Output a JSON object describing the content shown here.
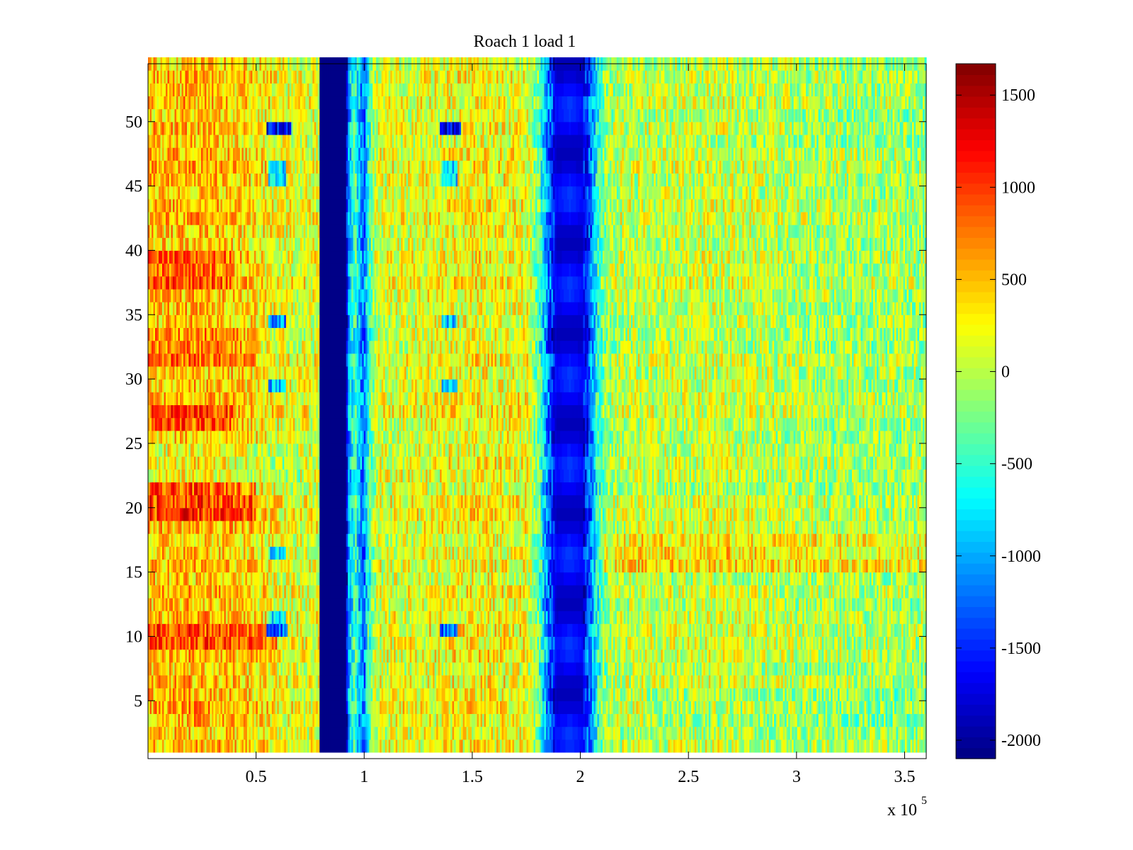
{
  "chart_data": {
    "type": "heatmap",
    "title": "Roach 1 load 1",
    "xlabel": "",
    "ylabel": "",
    "x_multiplier": "x 10",
    "x_multiplier_exponent": "5",
    "xlim": [
      0,
      360000
    ],
    "ylim": [
      0.5,
      54.5
    ],
    "clim": [
      -2100,
      1670
    ],
    "colormap": "jet",
    "colormap_levels": 64,
    "xticks": [
      50000,
      100000,
      150000,
      200000,
      250000,
      300000,
      350000
    ],
    "xtick_labels": [
      "0.5",
      "1",
      "1.5",
      "2",
      "2.5",
      "3",
      "3.5"
    ],
    "yticks": [
      5,
      10,
      15,
      20,
      25,
      30,
      35,
      40,
      45,
      50
    ],
    "ytick_labels": [
      "5",
      "10",
      "15",
      "20",
      "25",
      "30",
      "35",
      "40",
      "45",
      "50"
    ],
    "colorbar_ticks": [
      -2000,
      -1500,
      -1000,
      -500,
      0,
      500,
      1000,
      1500
    ],
    "colorbar_tick_labels": [
      "-2000",
      "-1500",
      "-1000",
      "-500",
      "0",
      "500",
      "1000",
      "1500"
    ],
    "rows": 54,
    "x_profile": [
      {
        "x": 0,
        "value": 450
      },
      {
        "x": 20000,
        "value": 500
      },
      {
        "x": 40000,
        "value": 430
      },
      {
        "x": 55000,
        "value": 300
      },
      {
        "x": 65000,
        "value": 150
      },
      {
        "x": 75000,
        "value": 150
      },
      {
        "x": 79000,
        "value": 150
      },
      {
        "x": 79500,
        "value": -2100
      },
      {
        "x": 91500,
        "value": -2100
      },
      {
        "x": 93000,
        "value": -900
      },
      {
        "x": 96000,
        "value": -400
      },
      {
        "x": 98000,
        "value": -1000
      },
      {
        "x": 100000,
        "value": -1200
      },
      {
        "x": 102000,
        "value": -500
      },
      {
        "x": 106000,
        "value": 100
      },
      {
        "x": 150000,
        "value": 250
      },
      {
        "x": 175000,
        "value": 200
      },
      {
        "x": 181000,
        "value": -400
      },
      {
        "x": 185000,
        "value": -1300
      },
      {
        "x": 189000,
        "value": -1900
      },
      {
        "x": 201000,
        "value": -1900
      },
      {
        "x": 205000,
        "value": -1300
      },
      {
        "x": 208000,
        "value": -600
      },
      {
        "x": 212000,
        "value": -100
      },
      {
        "x": 220000,
        "value": 0
      },
      {
        "x": 270000,
        "value": 60
      },
      {
        "x": 310000,
        "value": -60
      },
      {
        "x": 360000,
        "value": -100
      }
    ],
    "noise_amplitude": 450,
    "row_effects": [
      {
        "rows": [
          9,
          10
        ],
        "x_range": [
          0,
          60000
        ],
        "delta": 400
      },
      {
        "rows": [
          19,
          20,
          21
        ],
        "x_range": [
          0,
          50000
        ],
        "delta": 450
      },
      {
        "rows": [
          26,
          27
        ],
        "x_range": [
          0,
          40000
        ],
        "delta": 400
      },
      {
        "rows": [
          31,
          32,
          33
        ],
        "x_range": [
          0,
          50000
        ],
        "delta": 250
      },
      {
        "rows": [
          37,
          38,
          39
        ],
        "x_range": [
          0,
          40000
        ],
        "delta": 300
      },
      {
        "rows": [
          15,
          16,
          17
        ],
        "x_range": [
          210000,
          360000
        ],
        "delta": 350
      },
      {
        "rows": [
          3,
          4,
          5
        ],
        "x_range": [
          230000,
          360000
        ],
        "delta": -150
      },
      {
        "rows": [
          22,
          23,
          24
        ],
        "x_range": [
          0,
          70000
        ],
        "delta": -250
      }
    ],
    "spots": [
      {
        "rows": [
          49
        ],
        "x_range": [
          55000,
          66000
        ],
        "value": -1700
      },
      {
        "rows": [
          49
        ],
        "x_range": [
          135000,
          145000
        ],
        "value": -1700
      },
      {
        "rows": [
          10
        ],
        "x_range": [
          55000,
          65000
        ],
        "value": -1300
      },
      {
        "rows": [
          10
        ],
        "x_range": [
          135000,
          143000
        ],
        "value": -1300
      },
      {
        "rows": [
          34
        ],
        "x_range": [
          56000,
          64000
        ],
        "value": -1100
      },
      {
        "rows": [
          29
        ],
        "x_range": [
          56000,
          64000
        ],
        "value": -900
      },
      {
        "rows": [
          45,
          46
        ],
        "x_range": [
          56000,
          64000
        ],
        "value": -900
      },
      {
        "rows": [
          45,
          46
        ],
        "x_range": [
          136000,
          143000
        ],
        "value": -900
      },
      {
        "rows": [
          11,
          16
        ],
        "x_range": [
          56000,
          64000
        ],
        "value": -700
      },
      {
        "rows": [
          29,
          34
        ],
        "x_range": [
          136000,
          143000
        ],
        "value": -800
      }
    ]
  }
}
